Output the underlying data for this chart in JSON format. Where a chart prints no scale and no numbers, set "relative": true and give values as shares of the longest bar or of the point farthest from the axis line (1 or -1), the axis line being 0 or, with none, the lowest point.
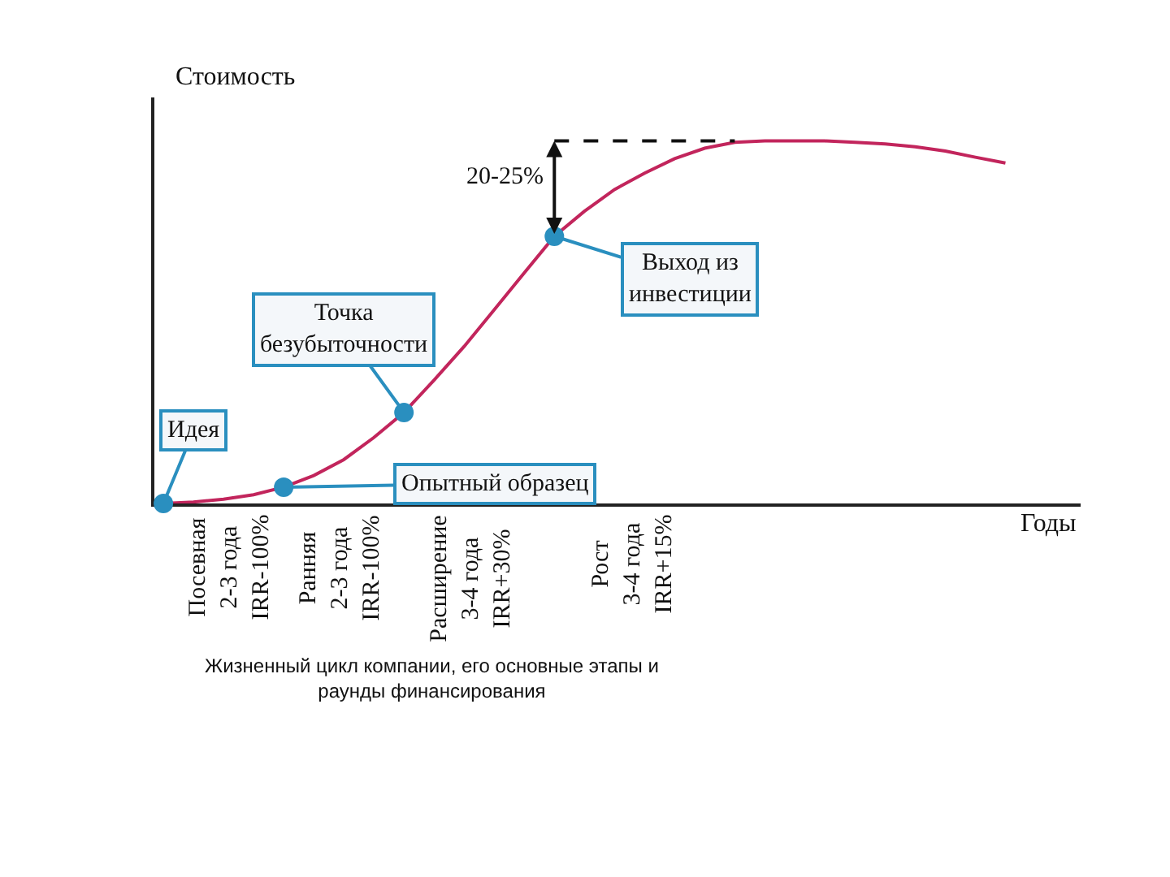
{
  "chart_data": {
    "type": "line",
    "relative": true,
    "ylabel": "Стоимость",
    "xlabel": "Годы",
    "categories": [
      null,
      null,
      null,
      null,
      null,
      null,
      null,
      null,
      null,
      null,
      null,
      null,
      null,
      null,
      null,
      null,
      null,
      null,
      null,
      null,
      null,
      null,
      null,
      null,
      null,
      null,
      null,
      null,
      null
    ],
    "series": [
      {
        "color": "#c2255c",
        "marker": "none",
        "values": [
          0,
          0.004,
          0.012,
          0.024,
          0.045,
          0.077,
          0.121,
          0.182,
          0.251,
          0.34,
          0.433,
          0.534,
          0.636,
          0.737,
          0.806,
          0.866,
          0.911,
          0.951,
          0.98,
          0.996,
          1,
          1,
          1,
          0.996,
          0.992,
          0.984,
          0.972,
          0.955,
          0.939
        ]
      }
    ],
    "annotations": [
      "Посевная\n2-3 года\nIRR-100%",
      "Ранняя\n2-3 года\nIRR-100%",
      "Расширение\n3-4 года\nIRR+30%",
      "Рост\n3-4 года\nIRR+15%",
      "Идея",
      "Опытный образец",
      "Точка\nбезубыточности",
      "Выход из\nинвестиции",
      "20-25%",
      "Жизненный цикл компании, его основные этапы и\nраунды финансирования"
    ]
  }
}
